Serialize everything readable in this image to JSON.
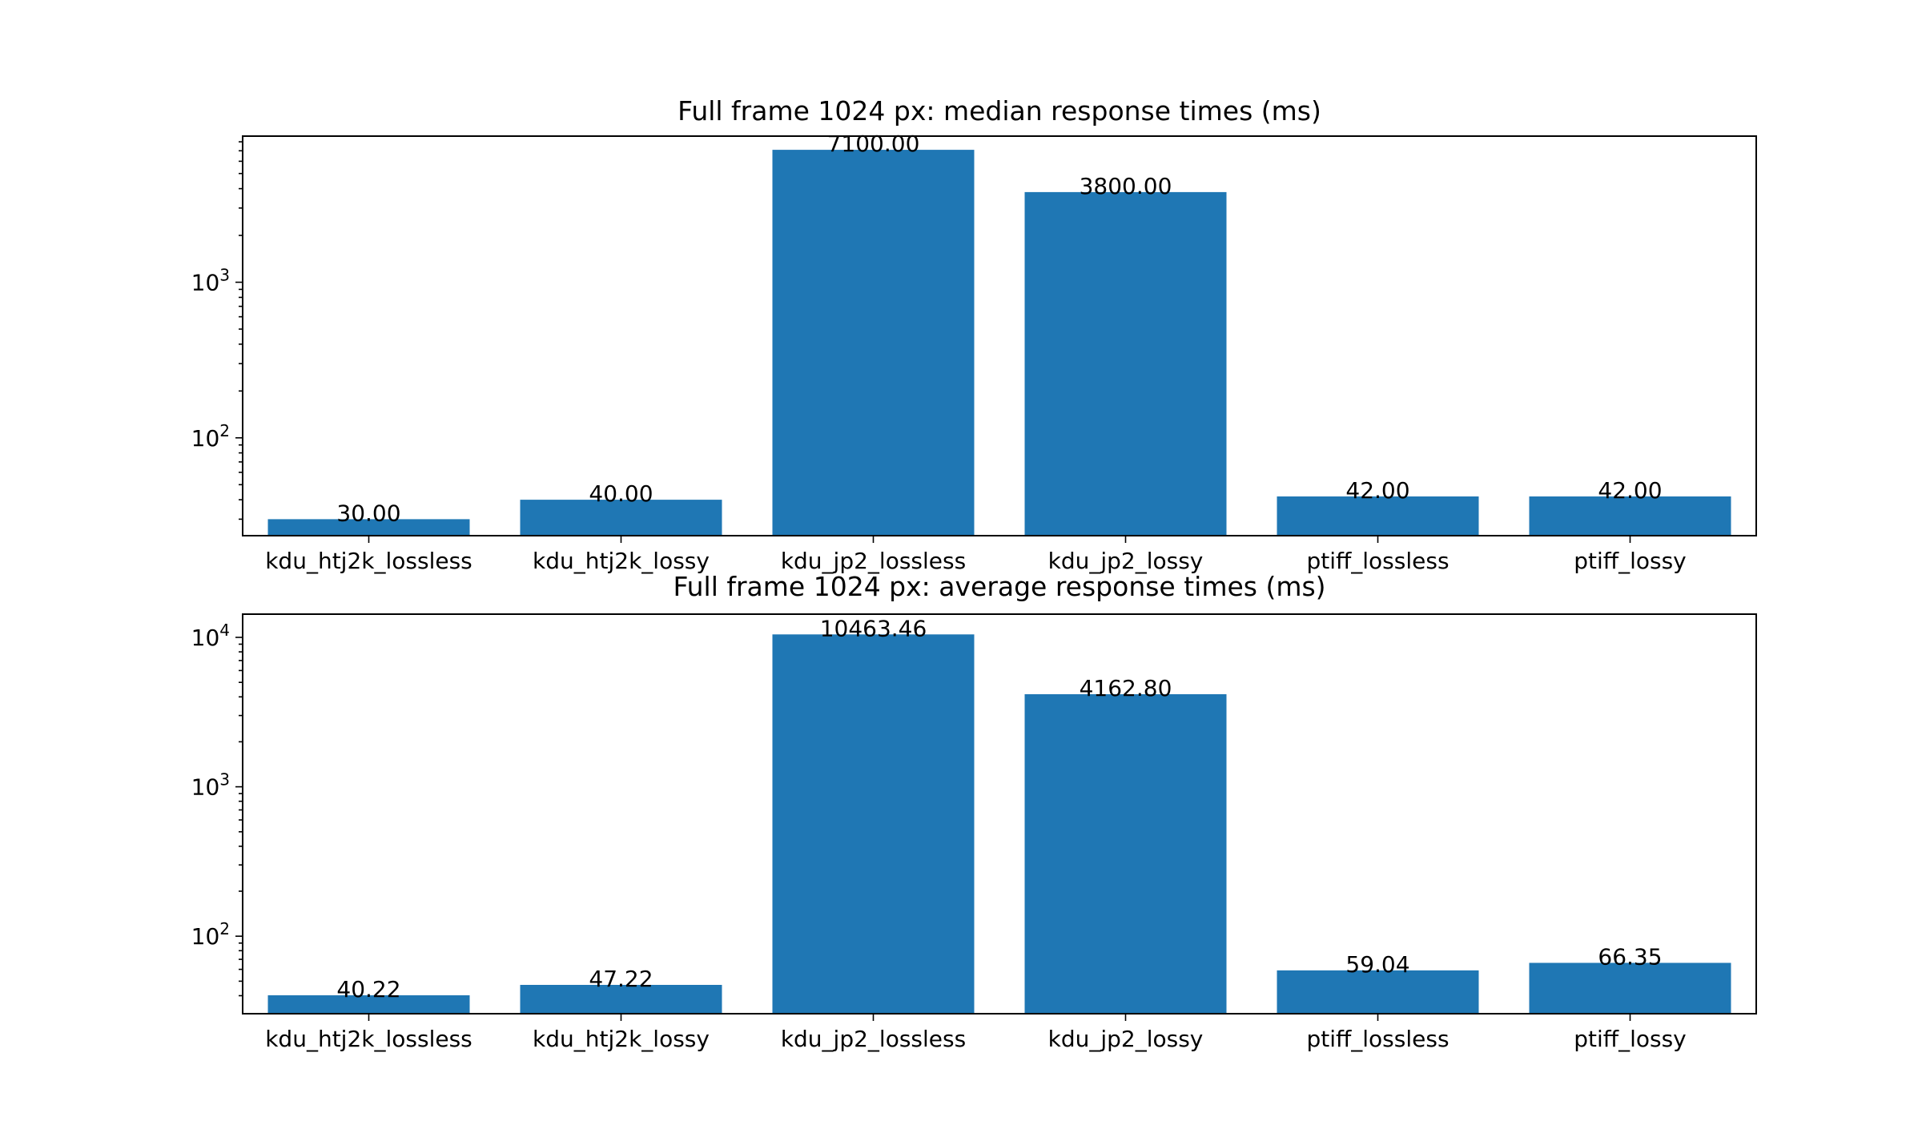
{
  "chart_data": [
    {
      "type": "bar",
      "title": "Full frame 1024 px: median response times (ms)",
      "categories": [
        "kdu_htj2k_lossless",
        "kdu_htj2k_lossy",
        "kdu_jp2_lossless",
        "kdu_jp2_lossy",
        "ptiff_lossless",
        "ptiff_lossy"
      ],
      "values": [
        30,
        40,
        7100,
        3800,
        42,
        42
      ],
      "value_labels": [
        "30.00",
        "40.00",
        "7100.00",
        "3800.00",
        "42.00",
        "42.00"
      ],
      "yscale": "log",
      "ylim": [
        23.5,
        8700
      ],
      "yticks": [
        {
          "value": 100,
          "base": "10",
          "exp": "2"
        },
        {
          "value": 1000,
          "base": "10",
          "exp": "3"
        }
      ],
      "xlabel": "",
      "ylabel": "",
      "bar_color": "#1f77b4",
      "grid": false
    },
    {
      "type": "bar",
      "title": "Full frame 1024 px: average response times (ms)",
      "categories": [
        "kdu_htj2k_lossless",
        "kdu_htj2k_lossy",
        "kdu_jp2_lossless",
        "kdu_jp2_lossy",
        "ptiff_lossless",
        "ptiff_lossy"
      ],
      "values": [
        40.22,
        47.22,
        10463.46,
        4162.8,
        59.04,
        66.35
      ],
      "value_labels": [
        "40.22",
        "47.22",
        "10463.46",
        "4162.80",
        "59.04",
        "66.35"
      ],
      "yscale": "log",
      "ylim": [
        30.3,
        14300
      ],
      "yticks": [
        {
          "value": 100,
          "base": "10",
          "exp": "2"
        },
        {
          "value": 1000,
          "base": "10",
          "exp": "3"
        },
        {
          "value": 10000,
          "base": "10",
          "exp": "4"
        }
      ],
      "xlabel": "",
      "ylabel": "",
      "bar_color": "#1f77b4",
      "grid": false
    }
  ]
}
